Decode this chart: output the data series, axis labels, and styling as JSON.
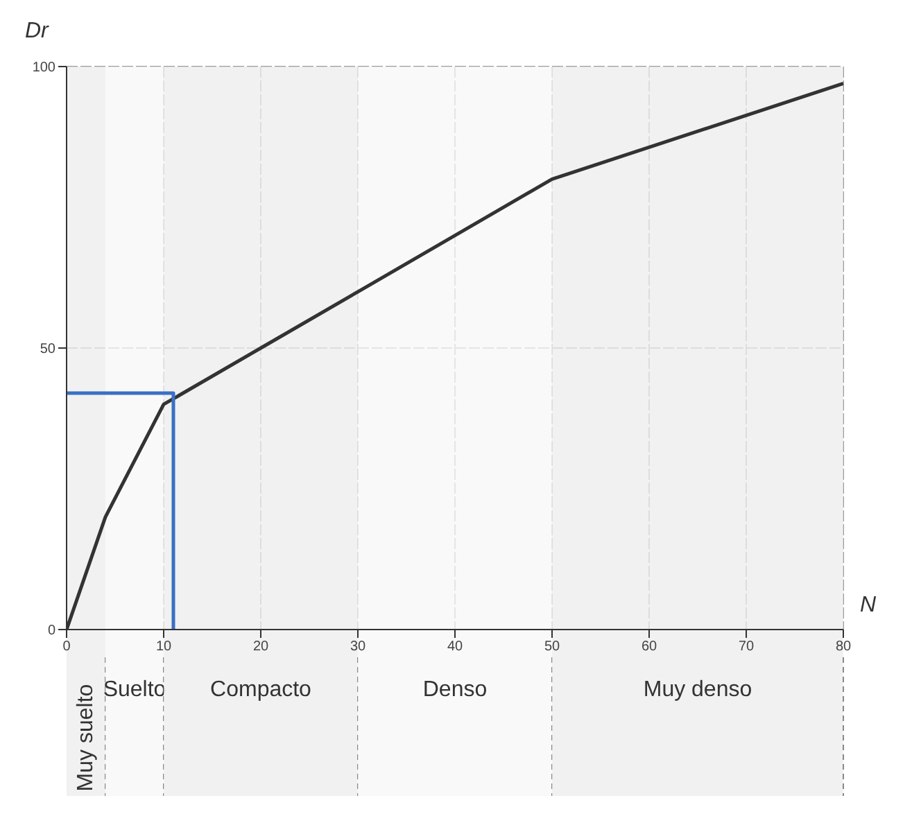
{
  "chart_data": {
    "type": "line",
    "xlabel": "N",
    "ylabel": "Dr",
    "xlim": [
      0,
      80
    ],
    "ylim": [
      0,
      100
    ],
    "xticks": [
      0,
      10,
      20,
      30,
      40,
      50,
      60,
      70,
      80
    ],
    "yticks": [
      0,
      50,
      100
    ],
    "grid": true,
    "marker": "none",
    "series": [
      {
        "color": "#333333",
        "x": [
          0,
          4,
          10,
          20,
          30,
          40,
          50,
          80
        ],
        "values": [
          0,
          20,
          40,
          50,
          60,
          70,
          80,
          97
        ]
      },
      {
        "color": "#3a6fc4",
        "x": [
          11,
          11,
          0
        ],
        "values": [
          0,
          42,
          42
        ]
      }
    ],
    "bands": [
      {
        "axis": "x",
        "from": 0,
        "to": 4,
        "label": "Muy suelto",
        "color": "#eeeeee"
      },
      {
        "axis": "x",
        "from": 4,
        "to": 10,
        "label": "Suelto",
        "color": "#f7f7f7"
      },
      {
        "axis": "x",
        "from": 10,
        "to": 30,
        "label": "Compacto",
        "color": "#eeeeee"
      },
      {
        "axis": "x",
        "from": 30,
        "to": 50,
        "label": "Denso",
        "color": "#f7f7f7"
      },
      {
        "axis": "x",
        "from": 50,
        "to": 80,
        "label": "Muy denso",
        "color": "#eeeeee"
      }
    ]
  }
}
